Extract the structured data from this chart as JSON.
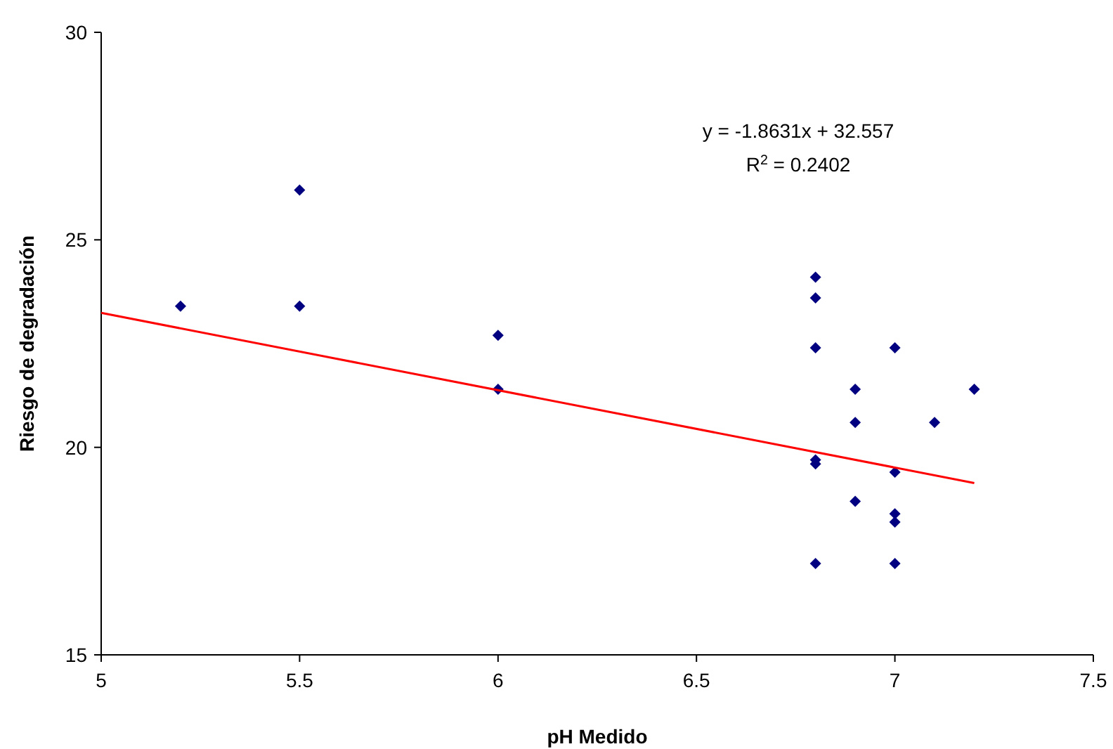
{
  "chart_data": {
    "type": "scatter",
    "xlabel": "pH Medido",
    "ylabel": "Riesgo de degradación",
    "xlim": [
      5,
      7.5
    ],
    "xticks": [
      5,
      5.5,
      6,
      6.5,
      7,
      7.5
    ],
    "ylim": [
      15,
      30
    ],
    "yticks": [
      15,
      20,
      25,
      30
    ],
    "annotations": [
      "y = -1.8631x + 32.557",
      "R$^{2}$ = 0.2402"
    ],
    "series": [
      {
        "color": "#000080",
        "marker": "diamond",
        "x": [
          5.2,
          5.5,
          5.5,
          6.0,
          6.0,
          6.8,
          6.8,
          6.8,
          6.8,
          6.8,
          6.8,
          6.9,
          6.9,
          6.9,
          7.0,
          7.0,
          7.0,
          7.0,
          7.0,
          7.1,
          7.2
        ],
        "values": [
          23.4,
          26.2,
          23.4,
          22.7,
          21.4,
          24.1,
          23.6,
          22.4,
          19.7,
          19.6,
          17.2,
          21.4,
          20.6,
          18.7,
          22.4,
          19.4,
          18.4,
          18.2,
          17.2,
          20.6,
          21.4
        ]
      },
      {
        "type": "line",
        "color": "#ff0000",
        "marker": "none",
        "x": [
          5,
          7.2
        ],
        "values": [
          23.24,
          19.14
        ]
      }
    ]
  }
}
